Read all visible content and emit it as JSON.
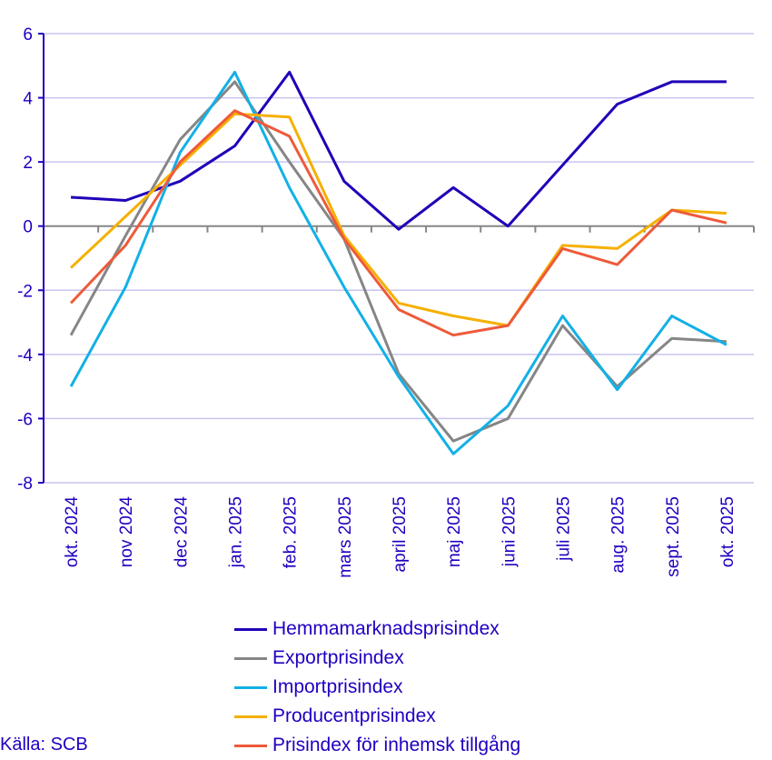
{
  "chart_data": {
    "type": "line",
    "categories": [
      "okt. 2024",
      "nov 2024",
      "dec 2024",
      "jan. 2025",
      "feb. 2025",
      "mars 2025",
      "april 2025",
      "maj 2025",
      "juni 2025",
      "juli 2025",
      "aug. 2025",
      "sept. 2025",
      "okt. 2025"
    ],
    "ylim": [
      -8,
      6
    ],
    "yticks": [
      6,
      4,
      2,
      0,
      -2,
      -4,
      -6,
      -8
    ],
    "grid": true,
    "legend": "bottom",
    "series": [
      {
        "name": "Hemmamarknadsprisindex",
        "color": "#1f00b8",
        "values": [
          0.9,
          0.8,
          1.4,
          2.5,
          4.8,
          1.4,
          -0.1,
          1.2,
          0.0,
          1.9,
          3.8,
          4.5,
          4.5
        ]
      },
      {
        "name": "Exportprisindex",
        "color": "#868686",
        "values": [
          -3.4,
          -0.3,
          2.7,
          4.5,
          2.0,
          -0.4,
          -4.6,
          -6.7,
          -6.0,
          -3.1,
          -5.0,
          -3.5,
          -3.6
        ]
      },
      {
        "name": "Importprisindex",
        "color": "#13b0e6",
        "values": [
          -5.0,
          -1.9,
          2.3,
          4.8,
          1.2,
          -1.9,
          -4.7,
          -7.1,
          -5.6,
          -2.8,
          -5.1,
          -2.8,
          -3.7
        ]
      },
      {
        "name": "Producentprisindex",
        "color": "#f5b000",
        "values": [
          -1.3,
          0.3,
          1.9,
          3.5,
          3.4,
          -0.3,
          -2.4,
          -2.8,
          -3.1,
          -0.6,
          -0.7,
          0.5,
          0.4
        ]
      },
      {
        "name": "Prisindex för inhemsk tillgång",
        "color": "#ee5a3a",
        "values": [
          -2.4,
          -0.6,
          2.0,
          3.6,
          2.8,
          -0.4,
          -2.6,
          -3.4,
          -3.1,
          -0.7,
          -1.2,
          0.5,
          0.1
        ]
      }
    ]
  },
  "source": "Källa: SCB"
}
